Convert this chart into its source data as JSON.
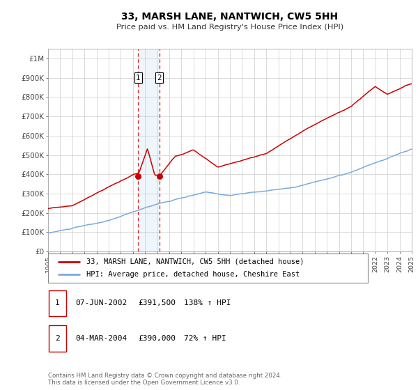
{
  "title": "33, MARSH LANE, NANTWICH, CW5 5HH",
  "subtitle": "Price paid vs. HM Land Registry's House Price Index (HPI)",
  "legend_label_red": "33, MARSH LANE, NANTWICH, CW5 5HH (detached house)",
  "legend_label_blue": "HPI: Average price, detached house, Cheshire East",
  "footnote1": "Contains HM Land Registry data © Crown copyright and database right 2024.",
  "footnote2": "This data is licensed under the Open Government Licence v3.0.",
  "sale1_label": "1",
  "sale1_date": "07-JUN-2002",
  "sale1_price": "£391,500",
  "sale1_hpi": "138% ↑ HPI",
  "sale2_label": "2",
  "sale2_date": "04-MAR-2004",
  "sale2_price": "£390,000",
  "sale2_hpi": "72% ↑ HPI",
  "sale1_year": 2002.44,
  "sale1_value": 391500,
  "sale2_year": 2004.17,
  "sale2_value": 390000,
  "ylim": [
    0,
    1050000
  ],
  "xlim_start": 1995,
  "xlim_end": 2025,
  "red_color": "#cc0000",
  "blue_color": "#7aabdb",
  "grid_color": "#cccccc",
  "shade_color": "#d0e4f5",
  "vline_color": "#cc0000"
}
